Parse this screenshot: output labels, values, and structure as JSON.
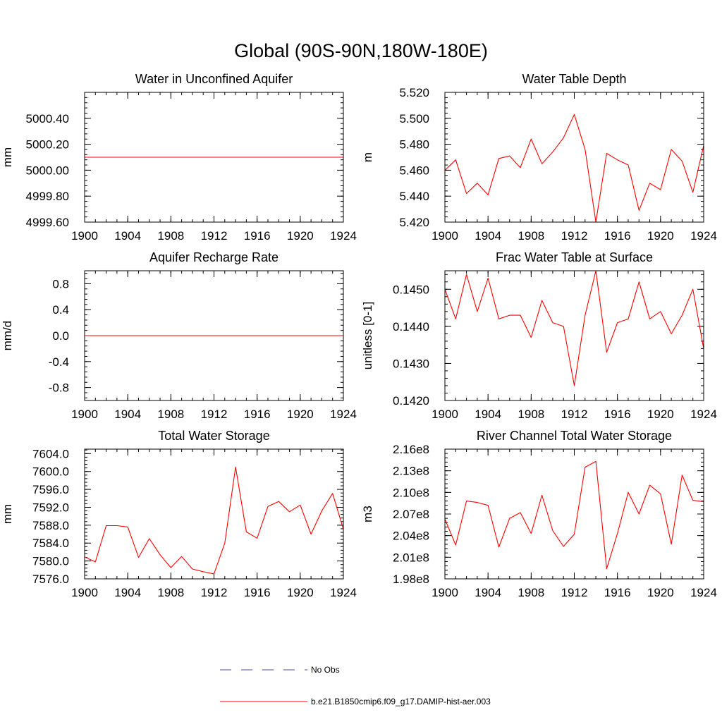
{
  "main_title": "Global (90S-90N,180W-180E)",
  "colors": {
    "model": "#ff0000",
    "obs": "#4b4ba6"
  },
  "legend": [
    {
      "label": "No Obs",
      "style": "dashed",
      "color": "#4b4ba6"
    },
    {
      "label": "b.e21.B1850cmip6.f09_g17.DAMIP-hist-aer.003",
      "style": "solid",
      "color": "#ff0000"
    }
  ],
  "chart_data": [
    {
      "type": "line",
      "title": "Water in Unconfined Aquifer",
      "ylabel": "mm",
      "xlim": [
        1900,
        1924
      ],
      "ylim": [
        4999.6,
        5000.6
      ],
      "xticks": [
        1900,
        1904,
        1908,
        1912,
        1916,
        1920,
        1924
      ],
      "yticks": [
        4999.6,
        4999.8,
        5000.0,
        5000.2,
        5000.4
      ],
      "ytick_labels": [
        "4999.60",
        "4999.80",
        "5000.00",
        "5000.20",
        "5000.40"
      ],
      "x": [
        1900,
        1901,
        1902,
        1903,
        1904,
        1905,
        1906,
        1907,
        1908,
        1909,
        1910,
        1911,
        1912,
        1913,
        1914,
        1915,
        1916,
        1917,
        1918,
        1919,
        1920,
        1921,
        1922,
        1923,
        1924
      ],
      "values": [
        5000.1,
        5000.1,
        5000.1,
        5000.1,
        5000.1,
        5000.1,
        5000.1,
        5000.1,
        5000.1,
        5000.1,
        5000.1,
        5000.1,
        5000.1,
        5000.1,
        5000.1,
        5000.1,
        5000.1,
        5000.1,
        5000.1,
        5000.1,
        5000.1,
        5000.1,
        5000.1,
        5000.1,
        5000.1
      ]
    },
    {
      "type": "line",
      "title": "Water Table Depth",
      "ylabel": "m",
      "xlim": [
        1900,
        1924
      ],
      "ylim": [
        5.42,
        5.52
      ],
      "xticks": [
        1900,
        1904,
        1908,
        1912,
        1916,
        1920,
        1924
      ],
      "yticks": [
        5.42,
        5.44,
        5.46,
        5.48,
        5.5,
        5.52
      ],
      "ytick_labels": [
        "5.420",
        "5.440",
        "5.460",
        "5.480",
        "5.500",
        "5.520"
      ],
      "x": [
        1900,
        1901,
        1902,
        1903,
        1904,
        1905,
        1906,
        1907,
        1908,
        1909,
        1910,
        1911,
        1912,
        1913,
        1914,
        1915,
        1916,
        1917,
        1918,
        1919,
        1920,
        1921,
        1922,
        1923,
        1924
      ],
      "values": [
        5.46,
        5.468,
        5.442,
        5.45,
        5.441,
        5.469,
        5.471,
        5.462,
        5.484,
        5.465,
        5.474,
        5.485,
        5.503,
        5.476,
        5.42,
        5.473,
        5.468,
        5.464,
        5.429,
        5.45,
        5.445,
        5.476,
        5.467,
        5.443,
        5.479
      ]
    },
    {
      "type": "line",
      "title": "Aquifer Recharge Rate",
      "ylabel": "mm/d",
      "xlim": [
        1900,
        1924
      ],
      "ylim": [
        -1.0,
        1.0
      ],
      "xticks": [
        1900,
        1904,
        1908,
        1912,
        1916,
        1920,
        1924
      ],
      "yticks": [
        -0.8,
        -0.4,
        0.0,
        0.4,
        0.8
      ],
      "ytick_labels": [
        "-0.8",
        "-0.4",
        "0.0",
        "0.4",
        "0.8"
      ],
      "x": [
        1900,
        1901,
        1902,
        1903,
        1904,
        1905,
        1906,
        1907,
        1908,
        1909,
        1910,
        1911,
        1912,
        1913,
        1914,
        1915,
        1916,
        1917,
        1918,
        1919,
        1920,
        1921,
        1922,
        1923,
        1924
      ],
      "values": [
        0,
        0,
        0,
        0,
        0,
        0,
        0,
        0,
        0,
        0,
        0,
        0,
        0,
        0,
        0,
        0,
        0,
        0,
        0,
        0,
        0,
        0,
        0,
        0,
        0
      ]
    },
    {
      "type": "line",
      "title": "Frac Water Table at Surface",
      "ylabel": "unitless [0-1]",
      "xlim": [
        1900,
        1924
      ],
      "ylim": [
        0.142,
        0.1455
      ],
      "xticks": [
        1900,
        1904,
        1908,
        1912,
        1916,
        1920,
        1924
      ],
      "yticks": [
        0.142,
        0.143,
        0.144,
        0.145
      ],
      "ytick_labels": [
        "0.1420",
        "0.1430",
        "0.1440",
        "0.1450"
      ],
      "x": [
        1900,
        1901,
        1902,
        1903,
        1904,
        1905,
        1906,
        1907,
        1908,
        1909,
        1910,
        1911,
        1912,
        1913,
        1914,
        1915,
        1916,
        1917,
        1918,
        1919,
        1920,
        1921,
        1922,
        1923,
        1924
      ],
      "values": [
        0.145,
        0.1442,
        0.1454,
        0.1444,
        0.1453,
        0.1442,
        0.1443,
        0.1443,
        0.1437,
        0.1447,
        0.1441,
        0.144,
        0.1424,
        0.1443,
        0.1455,
        0.1433,
        0.1441,
        0.1442,
        0.1452,
        0.1442,
        0.1444,
        0.1438,
        0.1443,
        0.145,
        0.1434
      ]
    },
    {
      "type": "line",
      "title": "Total Water Storage",
      "ylabel": "mm",
      "xlim": [
        1900,
        1924
      ],
      "ylim": [
        7576.0,
        7605.0
      ],
      "xticks": [
        1900,
        1904,
        1908,
        1912,
        1916,
        1920,
        1924
      ],
      "yticks": [
        7576,
        7580,
        7584,
        7588,
        7592,
        7596,
        7600,
        7604
      ],
      "ytick_labels": [
        "7576.0",
        "7580.0",
        "7584.0",
        "7588.0",
        "7592.0",
        "7596.0",
        "7600.0",
        "7604.0"
      ],
      "x": [
        1900,
        1901,
        1902,
        1903,
        1904,
        1905,
        1906,
        1907,
        1908,
        1909,
        1910,
        1911,
        1912,
        1913,
        1914,
        1915,
        1916,
        1917,
        1918,
        1919,
        1920,
        1921,
        1922,
        1923,
        1924
      ],
      "values": [
        7580.9,
        7579.8,
        7587.9,
        7587.9,
        7587.6,
        7580.8,
        7585.0,
        7581.4,
        7578.5,
        7581.0,
        7578.2,
        7577.6,
        7577.1,
        7584.0,
        7601.0,
        7586.5,
        7585.1,
        7592.2,
        7593.3,
        7591.0,
        7592.5,
        7586.0,
        7591.2,
        7595.1,
        7587.1
      ]
    },
    {
      "type": "line",
      "title": "River Channel Total Water Storage",
      "ylabel": "m3",
      "xlim": [
        1900,
        1924
      ],
      "ylim": [
        198000000.0,
        216000000.0
      ],
      "xticks": [
        1900,
        1904,
        1908,
        1912,
        1916,
        1920,
        1924
      ],
      "yticks": [
        198000000.0,
        201000000.0,
        204000000.0,
        207000000.0,
        210000000.0,
        213000000.0,
        216000000.0
      ],
      "ytick_labels": [
        "1.98e8",
        "2.01e8",
        "2.04e8",
        "2.07e8",
        "2.10e8",
        "2.13e8",
        "2.16e8"
      ],
      "x": [
        1900,
        1901,
        1902,
        1903,
        1904,
        1905,
        1906,
        1907,
        1908,
        1909,
        1910,
        1911,
        1912,
        1913,
        1914,
        1915,
        1916,
        1917,
        1918,
        1919,
        1920,
        1921,
        1922,
        1923,
        1924
      ],
      "values": [
        206300000,
        202700000,
        208800000,
        208600000,
        208200000,
        202400000,
        206400000,
        207200000,
        204300000,
        209600000,
        204700000,
        202500000,
        204200000,
        213500000,
        214300000,
        199400000,
        204300000,
        210000000,
        207000000,
        211000000,
        209800000,
        202800000,
        212400000,
        208900000,
        208700000
      ]
    }
  ]
}
